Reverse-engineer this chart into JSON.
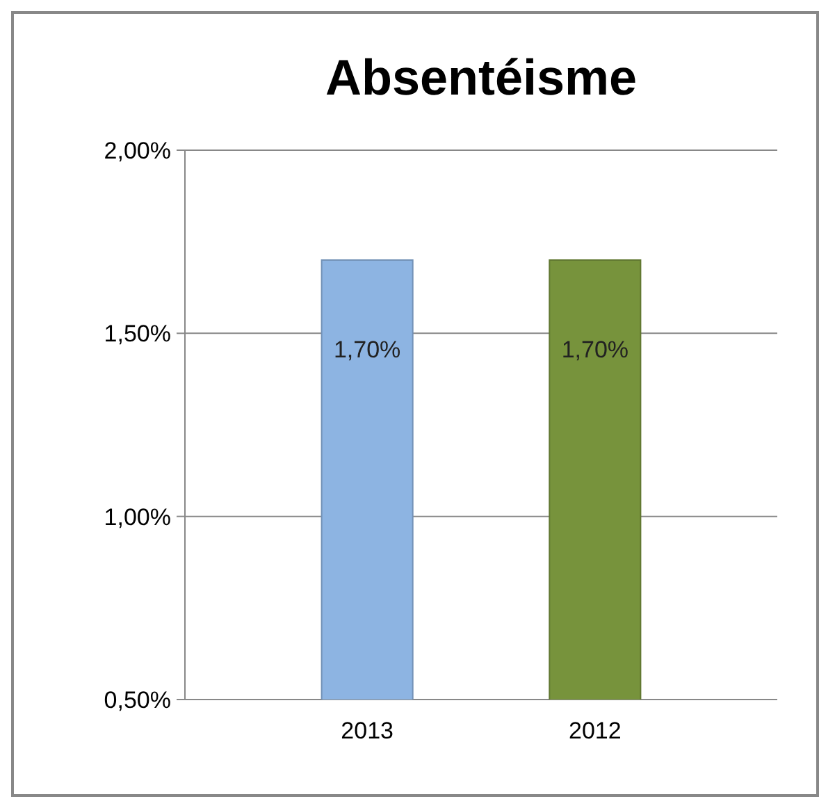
{
  "chart_data": {
    "type": "bar",
    "title": "Absentéisme",
    "categories": [
      "2013",
      "2012"
    ],
    "values": [
      1.7,
      1.7
    ],
    "colors": [
      "#8db4e2",
      "#77933c"
    ],
    "value_labels": [
      "1,70%",
      "1,70%"
    ],
    "ylim": [
      0.5,
      2.0
    ],
    "yticks": [
      {
        "value": 0.5,
        "label": "0,50%"
      },
      {
        "value": 1.0,
        "label": "1,00%"
      },
      {
        "value": 1.5,
        "label": "1,50%"
      },
      {
        "value": 2.0,
        "label": "2,00%"
      }
    ],
    "grid": "y"
  }
}
